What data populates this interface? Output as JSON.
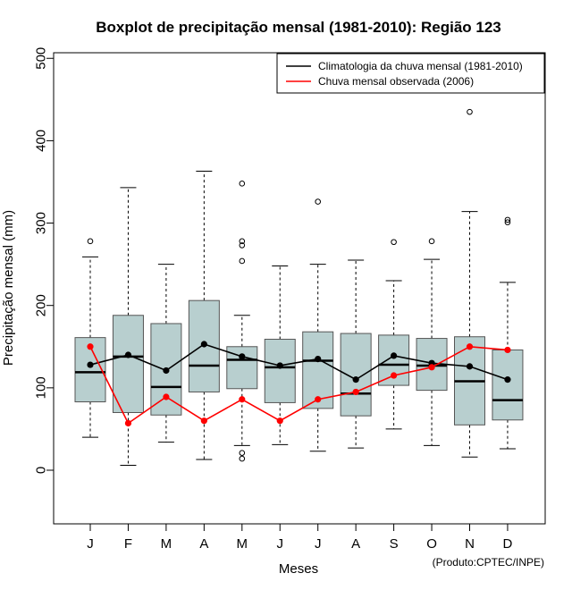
{
  "chart_data": {
    "type": "boxplot",
    "title": "Boxplot de precipitação mensal (1981-2010): Região 123",
    "xlabel": "Meses",
    "ylabel": "Precipitação mensal (mm)",
    "ylim": [
      -65,
      510
    ],
    "yticks": [
      0,
      100,
      200,
      300,
      400,
      500
    ],
    "categories": [
      "J",
      "F",
      "M",
      "A",
      "M",
      "J",
      "J",
      "A",
      "S",
      "O",
      "N",
      "D"
    ],
    "boxes": [
      {
        "whisker_low": 40,
        "q1": 83,
        "median": 119,
        "q3": 161,
        "whisker_high": 259,
        "outliers": [
          278
        ]
      },
      {
        "whisker_low": 6,
        "q1": 70,
        "median": 138,
        "q3": 188,
        "whisker_high": 343,
        "outliers": []
      },
      {
        "whisker_low": 34,
        "q1": 67,
        "median": 101,
        "q3": 178,
        "whisker_high": 250,
        "outliers": []
      },
      {
        "whisker_low": 13,
        "q1": 95,
        "median": 127,
        "q3": 206,
        "whisker_high": 363,
        "outliers": []
      },
      {
        "whisker_low": 30,
        "q1": 99,
        "median": 134,
        "q3": 150,
        "whisker_high": 188,
        "outliers": [
          14,
          21,
          254,
          273,
          278,
          348
        ]
      },
      {
        "whisker_low": 31,
        "q1": 82,
        "median": 125,
        "q3": 159,
        "whisker_high": 248,
        "outliers": []
      },
      {
        "whisker_low": 23,
        "q1": 75,
        "median": 133,
        "q3": 168,
        "whisker_high": 250,
        "outliers": [
          326
        ]
      },
      {
        "whisker_low": 27,
        "q1": 66,
        "median": 93,
        "q3": 166,
        "whisker_high": 255,
        "outliers": []
      },
      {
        "whisker_low": 50,
        "q1": 103,
        "median": 128,
        "q3": 164,
        "whisker_high": 230,
        "outliers": [
          277
        ]
      },
      {
        "whisker_low": 30,
        "q1": 97,
        "median": 127,
        "q3": 160,
        "whisker_high": 256,
        "outliers": [
          278
        ]
      },
      {
        "whisker_low": 16,
        "q1": 55,
        "median": 108,
        "q3": 162,
        "whisker_high": 314,
        "outliers": [
          435
        ]
      },
      {
        "whisker_low": 26,
        "q1": 61,
        "median": 85,
        "q3": 146,
        "whisker_high": 228,
        "outliers": [
          301,
          304
        ]
      }
    ],
    "series": [
      {
        "name": "Climatologia da chuva mensal (1981-2010)",
        "color": "#000000",
        "values": [
          128,
          140,
          121,
          153,
          138,
          127,
          135,
          110,
          139,
          130,
          126,
          110
        ]
      },
      {
        "name": "Chuva mensal observada (2006)",
        "color": "#ff0000",
        "values": [
          150,
          57,
          89,
          60,
          86,
          60,
          86,
          95,
          115,
          125,
          150,
          146
        ]
      }
    ],
    "box_color": "#b8cfcf",
    "legend_position": "top-right",
    "credit": "(Produto:CPTEC/INPE)"
  }
}
